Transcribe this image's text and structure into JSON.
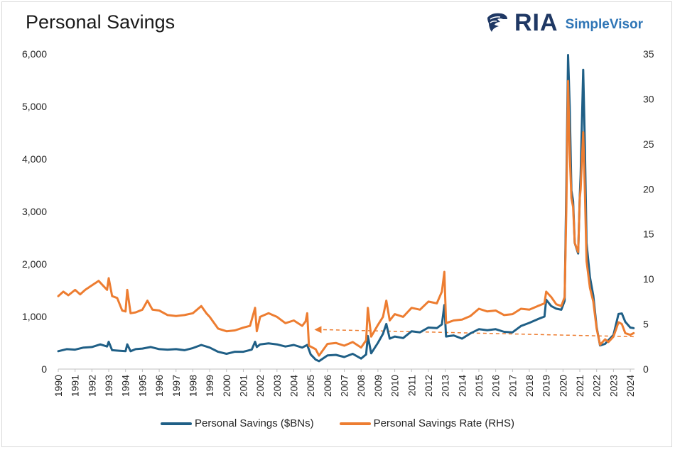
{
  "title": "Personal Savings",
  "logo": {
    "brand": "RIA",
    "product": "SimpleVisor",
    "mark_icon": "eagle-head-icon"
  },
  "chart_data": {
    "type": "line",
    "title": "Personal Savings",
    "years": [
      "1990",
      "1991",
      "1992",
      "1993",
      "1994",
      "1995",
      "1996",
      "1997",
      "1998",
      "1999",
      "2000",
      "2001",
      "2002",
      "2003",
      "2004",
      "2005",
      "2006",
      "2007",
      "2008",
      "2009",
      "2010",
      "2011",
      "2012",
      "2013",
      "2014",
      "2015",
      "2016",
      "2017",
      "2018",
      "2019",
      "2020",
      "2021",
      "2022",
      "2023",
      "2024"
    ],
    "y_left": {
      "min": 0,
      "max": 6000,
      "ticks": [
        "0",
        "1,000",
        "2,000",
        "3,000",
        "4,000",
        "5,000",
        "6,000"
      ],
      "tick_values": [
        0,
        1000,
        2000,
        3000,
        4000,
        5000,
        6000
      ]
    },
    "y_right": {
      "min": 0,
      "max": 35,
      "ticks": [
        "0",
        "5",
        "10",
        "15",
        "20",
        "25",
        "30",
        "35"
      ],
      "tick_values": [
        0,
        5,
        10,
        15,
        20,
        25,
        30,
        35
      ]
    },
    "grid": false,
    "legend_position": "bottom",
    "series": [
      {
        "name": "Personal Savings ($BNs)",
        "axis": "left",
        "color": "#1f5f86",
        "points": [
          [
            1990.0,
            340
          ],
          [
            1990.5,
            380
          ],
          [
            1991.0,
            370
          ],
          [
            1991.5,
            410
          ],
          [
            1992.0,
            420
          ],
          [
            1992.5,
            470
          ],
          [
            1992.9,
            430
          ],
          [
            1993.0,
            520
          ],
          [
            1993.2,
            360
          ],
          [
            1993.6,
            350
          ],
          [
            1994.0,
            340
          ],
          [
            1994.1,
            470
          ],
          [
            1994.3,
            340
          ],
          [
            1994.6,
            380
          ],
          [
            1995.0,
            390
          ],
          [
            1995.5,
            420
          ],
          [
            1996.0,
            380
          ],
          [
            1996.5,
            370
          ],
          [
            1997.0,
            380
          ],
          [
            1997.5,
            360
          ],
          [
            1998.0,
            400
          ],
          [
            1998.5,
            460
          ],
          [
            1999.0,
            410
          ],
          [
            1999.5,
            330
          ],
          [
            2000.0,
            290
          ],
          [
            2000.5,
            330
          ],
          [
            2001.0,
            330
          ],
          [
            2001.5,
            370
          ],
          [
            2001.7,
            520
          ],
          [
            2001.8,
            420
          ],
          [
            2002.0,
            470
          ],
          [
            2002.5,
            490
          ],
          [
            2003.0,
            470
          ],
          [
            2003.5,
            430
          ],
          [
            2004.0,
            460
          ],
          [
            2004.5,
            410
          ],
          [
            2004.8,
            460
          ],
          [
            2005.0,
            280
          ],
          [
            2005.3,
            180
          ],
          [
            2005.5,
            150
          ],
          [
            2006.0,
            260
          ],
          [
            2006.5,
            270
          ],
          [
            2007.0,
            230
          ],
          [
            2007.5,
            290
          ],
          [
            2008.0,
            200
          ],
          [
            2008.3,
            280
          ],
          [
            2008.4,
            630
          ],
          [
            2008.6,
            300
          ],
          [
            2009.0,
            500
          ],
          [
            2009.3,
            670
          ],
          [
            2009.5,
            860
          ],
          [
            2009.7,
            580
          ],
          [
            2010.0,
            620
          ],
          [
            2010.5,
            590
          ],
          [
            2011.0,
            720
          ],
          [
            2011.5,
            700
          ],
          [
            2012.0,
            790
          ],
          [
            2012.5,
            780
          ],
          [
            2012.8,
            850
          ],
          [
            2012.95,
            1220
          ],
          [
            2013.05,
            620
          ],
          [
            2013.5,
            640
          ],
          [
            2014.0,
            580
          ],
          [
            2014.5,
            680
          ],
          [
            2015.0,
            760
          ],
          [
            2015.5,
            740
          ],
          [
            2016.0,
            760
          ],
          [
            2016.5,
            710
          ],
          [
            2017.0,
            700
          ],
          [
            2017.5,
            820
          ],
          [
            2018.0,
            880
          ],
          [
            2018.5,
            950
          ],
          [
            2018.9,
            1000
          ],
          [
            2019.0,
            1320
          ],
          [
            2019.3,
            1200
          ],
          [
            2019.6,
            1150
          ],
          [
            2019.9,
            1130
          ],
          [
            2020.1,
            1300
          ],
          [
            2020.2,
            3500
          ],
          [
            2020.3,
            5980
          ],
          [
            2020.4,
            5000
          ],
          [
            2020.5,
            3400
          ],
          [
            2020.6,
            3200
          ],
          [
            2020.7,
            2400
          ],
          [
            2020.9,
            2200
          ],
          [
            2021.0,
            3300
          ],
          [
            2021.05,
            3700
          ],
          [
            2021.2,
            5700
          ],
          [
            2021.3,
            4300
          ],
          [
            2021.4,
            2400
          ],
          [
            2021.6,
            1750
          ],
          [
            2021.8,
            1400
          ],
          [
            2022.0,
            800
          ],
          [
            2022.2,
            450
          ],
          [
            2022.5,
            480
          ],
          [
            2022.7,
            550
          ],
          [
            2023.0,
            650
          ],
          [
            2023.3,
            1050
          ],
          [
            2023.5,
            1060
          ],
          [
            2023.7,
            900
          ],
          [
            2024.0,
            790
          ],
          [
            2024.2,
            780
          ]
        ]
      },
      {
        "name": "Personal Savings Rate (RHS)",
        "axis": "right",
        "color": "#ed7d31",
        "points": [
          [
            1990.0,
            8.1
          ],
          [
            1990.3,
            8.6
          ],
          [
            1990.6,
            8.2
          ],
          [
            1991.0,
            8.8
          ],
          [
            1991.3,
            8.3
          ],
          [
            1991.6,
            8.8
          ],
          [
            1992.0,
            9.3
          ],
          [
            1992.4,
            9.8
          ],
          [
            1992.7,
            9.2
          ],
          [
            1992.9,
            8.8
          ],
          [
            1993.0,
            10.1
          ],
          [
            1993.2,
            8.1
          ],
          [
            1993.5,
            7.9
          ],
          [
            1993.8,
            6.5
          ],
          [
            1994.0,
            6.4
          ],
          [
            1994.1,
            8.8
          ],
          [
            1994.3,
            6.2
          ],
          [
            1994.6,
            6.3
          ],
          [
            1995.0,
            6.6
          ],
          [
            1995.3,
            7.6
          ],
          [
            1995.6,
            6.6
          ],
          [
            1996.0,
            6.5
          ],
          [
            1996.5,
            6.0
          ],
          [
            1997.0,
            5.9
          ],
          [
            1997.5,
            6.0
          ],
          [
            1998.0,
            6.2
          ],
          [
            1998.5,
            7.0
          ],
          [
            1998.8,
            6.2
          ],
          [
            1999.0,
            5.8
          ],
          [
            1999.5,
            4.5
          ],
          [
            2000.0,
            4.2
          ],
          [
            2000.5,
            4.3
          ],
          [
            2001.0,
            4.6
          ],
          [
            2001.4,
            4.8
          ],
          [
            2001.7,
            6.8
          ],
          [
            2001.8,
            4.2
          ],
          [
            2002.0,
            5.8
          ],
          [
            2002.5,
            6.2
          ],
          [
            2003.0,
            5.8
          ],
          [
            2003.5,
            5.1
          ],
          [
            2004.0,
            5.4
          ],
          [
            2004.5,
            4.8
          ],
          [
            2004.7,
            5.3
          ],
          [
            2004.8,
            6.2
          ],
          [
            2004.9,
            2.6
          ],
          [
            2005.3,
            2.2
          ],
          [
            2005.5,
            1.5
          ],
          [
            2006.0,
            2.8
          ],
          [
            2006.5,
            2.9
          ],
          [
            2007.0,
            2.6
          ],
          [
            2007.5,
            3.0
          ],
          [
            2008.0,
            2.4
          ],
          [
            2008.3,
            3.2
          ],
          [
            2008.4,
            6.8
          ],
          [
            2008.6,
            3.6
          ],
          [
            2009.0,
            4.9
          ],
          [
            2009.3,
            5.8
          ],
          [
            2009.5,
            7.6
          ],
          [
            2009.7,
            5.4
          ],
          [
            2010.0,
            6.1
          ],
          [
            2010.5,
            5.8
          ],
          [
            2011.0,
            6.8
          ],
          [
            2011.5,
            6.6
          ],
          [
            2012.0,
            7.5
          ],
          [
            2012.5,
            7.3
          ],
          [
            2012.8,
            8.6
          ],
          [
            2012.95,
            10.8
          ],
          [
            2013.05,
            5.1
          ],
          [
            2013.5,
            5.4
          ],
          [
            2014.0,
            5.5
          ],
          [
            2014.5,
            5.9
          ],
          [
            2015.0,
            6.7
          ],
          [
            2015.5,
            6.4
          ],
          [
            2016.0,
            6.5
          ],
          [
            2016.5,
            6.0
          ],
          [
            2017.0,
            6.1
          ],
          [
            2017.5,
            6.7
          ],
          [
            2018.0,
            6.6
          ],
          [
            2018.5,
            7.0
          ],
          [
            2018.9,
            7.3
          ],
          [
            2019.0,
            8.6
          ],
          [
            2019.3,
            8.0
          ],
          [
            2019.6,
            7.2
          ],
          [
            2019.9,
            7.0
          ],
          [
            2020.1,
            8.0
          ],
          [
            2020.2,
            18.0
          ],
          [
            2020.3,
            32.0
          ],
          [
            2020.4,
            24.0
          ],
          [
            2020.5,
            19.0
          ],
          [
            2020.6,
            18.0
          ],
          [
            2020.7,
            14.0
          ],
          [
            2020.9,
            13.0
          ],
          [
            2021.0,
            19.0
          ],
          [
            2021.05,
            20.0
          ],
          [
            2021.2,
            26.3
          ],
          [
            2021.3,
            20.0
          ],
          [
            2021.4,
            12.0
          ],
          [
            2021.6,
            9.0
          ],
          [
            2021.8,
            7.5
          ],
          [
            2022.0,
            4.5
          ],
          [
            2022.2,
            2.7
          ],
          [
            2022.5,
            3.3
          ],
          [
            2022.7,
            3.0
          ],
          [
            2023.0,
            3.6
          ],
          [
            2023.3,
            5.2
          ],
          [
            2023.5,
            5.0
          ],
          [
            2023.7,
            4.0
          ],
          [
            2024.0,
            3.8
          ],
          [
            2024.2,
            4.0
          ]
        ]
      }
    ],
    "annotations": [
      {
        "type": "dashed-arrow",
        "color": "#ed7d31",
        "from": [
          2024.2,
          3.6
        ],
        "to": [
          2004.8,
          3.6
        ]
      }
    ]
  },
  "legend": [
    {
      "label": "Personal Savings ($BNs)",
      "color": "#1f5f86"
    },
    {
      "label": "Personal Savings Rate (RHS)",
      "color": "#ed7d31"
    }
  ]
}
